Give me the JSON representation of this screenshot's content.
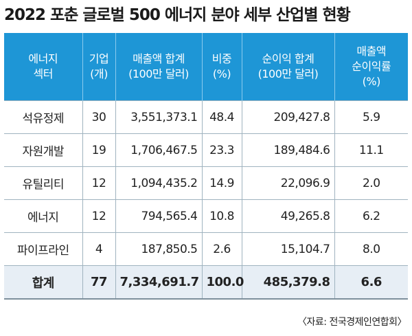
{
  "title": "2022 포춘 글로벌 500 에너지 분야 세부 산업별 현황",
  "headers": [
    [
      "에너지",
      "섹터"
    ],
    [
      "기업",
      "(개)"
    ],
    [
      "매출액 합계",
      "(100만 달러)"
    ],
    [
      "비중",
      "(%)"
    ],
    [
      "순이익 합계",
      "(100만 달러)"
    ],
    [
      "매출액",
      "순이익률",
      "(%)"
    ]
  ],
  "rows": [
    {
      "sector": "석유정제",
      "companies": "30",
      "revenue": "3,551,373.1",
      "share": "48.4",
      "profit": "209,427.8",
      "margin": "5.9"
    },
    {
      "sector": "자원개발",
      "companies": "19",
      "revenue": "1,706,467.5",
      "share": "23.3",
      "profit": "189,484.6",
      "margin": "11.1"
    },
    {
      "sector": "유틸리티",
      "companies": "12",
      "revenue": "1,094,435.2",
      "share": "14.9",
      "profit": "22,096.9",
      "margin": "2.0"
    },
    {
      "sector": "에너지",
      "companies": "12",
      "revenue": "794,565.4",
      "share": "10.8",
      "profit": "49,265.8",
      "margin": "6.2"
    },
    {
      "sector": "파이프라인",
      "companies": "4",
      "revenue": "187,850.5",
      "share": "2.6",
      "profit": "15,104.7",
      "margin": "8.0"
    }
  ],
  "total": {
    "sector": "합계",
    "companies": "77",
    "revenue": "7,334,691.7",
    "share": "100.0",
    "profit": "485,379.8",
    "margin": "6.6"
  },
  "source": "〈자료: 전국경제인연합회〉",
  "colors": {
    "header_bg": "#1e96d6",
    "total_bg": "#e7eef5"
  }
}
